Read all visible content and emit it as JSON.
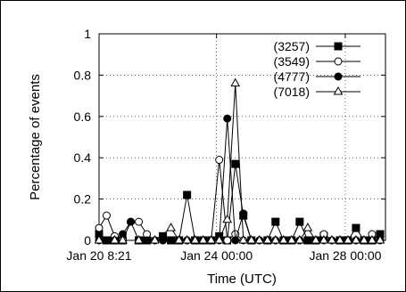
{
  "chart_data": {
    "type": "line",
    "xlabel": "Time (UTC)",
    "ylabel": "Percentage of events",
    "ylim": [
      0,
      1
    ],
    "yticks": [
      "0",
      "0.2",
      "0.4",
      "0.6",
      "0.8",
      "1"
    ],
    "xticks": [
      "Jan 20 8:21",
      "Jan 24 00:00",
      "Jan 28 00:00"
    ],
    "xlim": [
      "2009-01-20T08:21",
      "2009-01-29T06:00"
    ],
    "grid": true,
    "legend_position": "top-right",
    "series": [
      {
        "name": "(3257)",
        "marker": "filled-square",
        "points": [
          [
            "2009-01-20T08:21",
            0.03
          ],
          [
            "2009-01-20T14:00",
            0.0
          ],
          [
            "2009-01-20T20:00",
            0.0
          ],
          [
            "2009-01-21T02:00",
            0.0
          ],
          [
            "2009-01-21T14:00",
            0.0
          ],
          [
            "2009-01-21T20:00",
            0.0
          ],
          [
            "2009-01-22T08:00",
            0.02
          ],
          [
            "2009-01-22T14:00",
            0.0
          ],
          [
            "2009-01-22T20:00",
            0.0
          ],
          [
            "2009-01-23T02:00",
            0.22
          ],
          [
            "2009-01-23T08:00",
            0.0
          ],
          [
            "2009-01-23T14:00",
            0.0
          ],
          [
            "2009-01-23T20:00",
            0.0
          ],
          [
            "2009-01-24T02:00",
            0.02
          ],
          [
            "2009-01-24T08:00",
            0.0
          ],
          [
            "2009-01-24T14:00",
            0.37
          ],
          [
            "2009-01-24T20:00",
            0.12
          ],
          [
            "2009-01-25T02:00",
            0.0
          ],
          [
            "2009-01-25T14:00",
            0.0
          ],
          [
            "2009-01-25T20:00",
            0.09
          ],
          [
            "2009-01-26T02:00",
            0.0
          ],
          [
            "2009-01-26T08:00",
            0.0
          ],
          [
            "2009-01-26T14:00",
            0.09
          ],
          [
            "2009-01-26T20:00",
            0.0
          ],
          [
            "2009-01-27T02:00",
            0.0
          ],
          [
            "2009-01-27T08:00",
            0.02
          ],
          [
            "2009-01-27T20:00",
            0.0
          ],
          [
            "2009-01-28T02:00",
            0.0
          ],
          [
            "2009-01-28T08:00",
            0.06
          ],
          [
            "2009-01-28T14:00",
            0.0
          ],
          [
            "2009-01-28T20:00",
            0.0
          ],
          [
            "2009-01-29T02:00",
            0.03
          ]
        ]
      },
      {
        "name": "(3549)",
        "marker": "open-circle",
        "points": [
          [
            "2009-01-20T08:21",
            0.06
          ],
          [
            "2009-01-20T14:00",
            0.12
          ],
          [
            "2009-01-20T20:00",
            0.02
          ],
          [
            "2009-01-21T02:00",
            0.0
          ],
          [
            "2009-01-21T08:00",
            0.09
          ],
          [
            "2009-01-21T14:00",
            0.09
          ],
          [
            "2009-01-21T20:00",
            0.03
          ],
          [
            "2009-01-22T02:00",
            0.0
          ],
          [
            "2009-01-22T08:00",
            0.0
          ],
          [
            "2009-01-22T14:00",
            0.0
          ],
          [
            "2009-01-22T20:00",
            0.0
          ],
          [
            "2009-01-23T02:00",
            0.0
          ],
          [
            "2009-01-23T08:00",
            0.0
          ],
          [
            "2009-01-23T14:00",
            0.0
          ],
          [
            "2009-01-23T20:00",
            0.0
          ],
          [
            "2009-01-24T02:00",
            0.39
          ],
          [
            "2009-01-24T08:00",
            0.0
          ],
          [
            "2009-01-24T14:00",
            0.03
          ],
          [
            "2009-01-24T20:00",
            0.0
          ],
          [
            "2009-01-25T02:00",
            0.0
          ],
          [
            "2009-01-25T08:00",
            0.0
          ],
          [
            "2009-01-25T14:00",
            0.0
          ],
          [
            "2009-01-25T20:00",
            0.0
          ],
          [
            "2009-01-26T02:00",
            0.0
          ],
          [
            "2009-01-26T08:00",
            0.0
          ],
          [
            "2009-01-26T14:00",
            0.0
          ],
          [
            "2009-01-26T20:00",
            0.0
          ],
          [
            "2009-01-27T02:00",
            0.0
          ],
          [
            "2009-01-27T08:00",
            0.03
          ],
          [
            "2009-01-27T14:00",
            0.0
          ],
          [
            "2009-01-27T20:00",
            0.0
          ],
          [
            "2009-01-28T02:00",
            0.0
          ],
          [
            "2009-01-28T08:00",
            0.0
          ],
          [
            "2009-01-28T14:00",
            0.0
          ],
          [
            "2009-01-28T20:00",
            0.03
          ]
        ]
      },
      {
        "name": "(4777)",
        "marker": "filled-circle",
        "points": [
          [
            "2009-01-20T08:21",
            0.0
          ],
          [
            "2009-01-20T20:00",
            0.0
          ],
          [
            "2009-01-21T02:00",
            0.03
          ],
          [
            "2009-01-21T08:00",
            0.09
          ],
          [
            "2009-01-21T14:00",
            0.0
          ],
          [
            "2009-01-21T20:00",
            0.0
          ],
          [
            "2009-01-22T02:00",
            0.0
          ],
          [
            "2009-01-22T08:00",
            0.0
          ],
          [
            "2009-01-22T14:00",
            0.0
          ],
          [
            "2009-01-22T20:00",
            0.0
          ],
          [
            "2009-01-23T02:00",
            0.0
          ],
          [
            "2009-01-23T08:00",
            0.0
          ],
          [
            "2009-01-23T14:00",
            0.0
          ],
          [
            "2009-01-23T20:00",
            0.0
          ],
          [
            "2009-01-24T02:00",
            0.0
          ],
          [
            "2009-01-24T08:00",
            0.59
          ],
          [
            "2009-01-24T14:00",
            0.0
          ],
          [
            "2009-01-24T20:00",
            0.13
          ],
          [
            "2009-01-25T02:00",
            0.0
          ],
          [
            "2009-01-25T08:00",
            0.0
          ],
          [
            "2009-01-25T14:00",
            0.0
          ],
          [
            "2009-01-25T20:00",
            0.0
          ],
          [
            "2009-01-26T02:00",
            0.0
          ],
          [
            "2009-01-26T08:00",
            0.0
          ],
          [
            "2009-01-26T14:00",
            0.0
          ],
          [
            "2009-01-26T20:00",
            0.0
          ],
          [
            "2009-01-27T02:00",
            0.0
          ],
          [
            "2009-01-27T08:00",
            0.0
          ],
          [
            "2009-01-27T14:00",
            0.0
          ],
          [
            "2009-01-27T20:00",
            0.0
          ],
          [
            "2009-01-28T02:00",
            0.0
          ],
          [
            "2009-01-28T08:00",
            0.0
          ],
          [
            "2009-01-28T14:00",
            0.0
          ],
          [
            "2009-01-28T20:00",
            0.0
          ],
          [
            "2009-01-29T02:00",
            0.0
          ]
        ]
      },
      {
        "name": "(7018)",
        "marker": "open-triangle",
        "points": [
          [
            "2009-01-20T08:21",
            0.0
          ],
          [
            "2009-01-20T20:00",
            0.0
          ],
          [
            "2009-01-21T02:00",
            0.0
          ],
          [
            "2009-01-21T14:00",
            0.0
          ],
          [
            "2009-01-22T02:00",
            0.0
          ],
          [
            "2009-01-22T14:00",
            0.06
          ],
          [
            "2009-01-22T20:00",
            0.0
          ],
          [
            "2009-01-23T02:00",
            0.0
          ],
          [
            "2009-01-23T08:00",
            0.0
          ],
          [
            "2009-01-23T14:00",
            0.0
          ],
          [
            "2009-01-23T20:00",
            0.0
          ],
          [
            "2009-01-24T02:00",
            0.0
          ],
          [
            "2009-01-24T08:00",
            0.1
          ],
          [
            "2009-01-24T14:00",
            0.76
          ],
          [
            "2009-01-24T20:00",
            0.0
          ],
          [
            "2009-01-25T02:00",
            0.0
          ],
          [
            "2009-01-25T08:00",
            0.0
          ],
          [
            "2009-01-25T14:00",
            0.0
          ],
          [
            "2009-01-25T20:00",
            0.0
          ],
          [
            "2009-01-26T02:00",
            0.0
          ],
          [
            "2009-01-26T08:00",
            0.0
          ],
          [
            "2009-01-26T14:00",
            0.0
          ],
          [
            "2009-01-26T20:00",
            0.06
          ],
          [
            "2009-01-27T02:00",
            0.0
          ],
          [
            "2009-01-27T08:00",
            0.0
          ],
          [
            "2009-01-27T14:00",
            0.0
          ],
          [
            "2009-01-27T20:00",
            0.0
          ],
          [
            "2009-01-28T02:00",
            0.0
          ],
          [
            "2009-01-28T08:00",
            0.0
          ],
          [
            "2009-01-28T14:00",
            0.0
          ],
          [
            "2009-01-28T20:00",
            0.0
          ],
          [
            "2009-01-29T02:00",
            0.0
          ]
        ]
      }
    ]
  }
}
